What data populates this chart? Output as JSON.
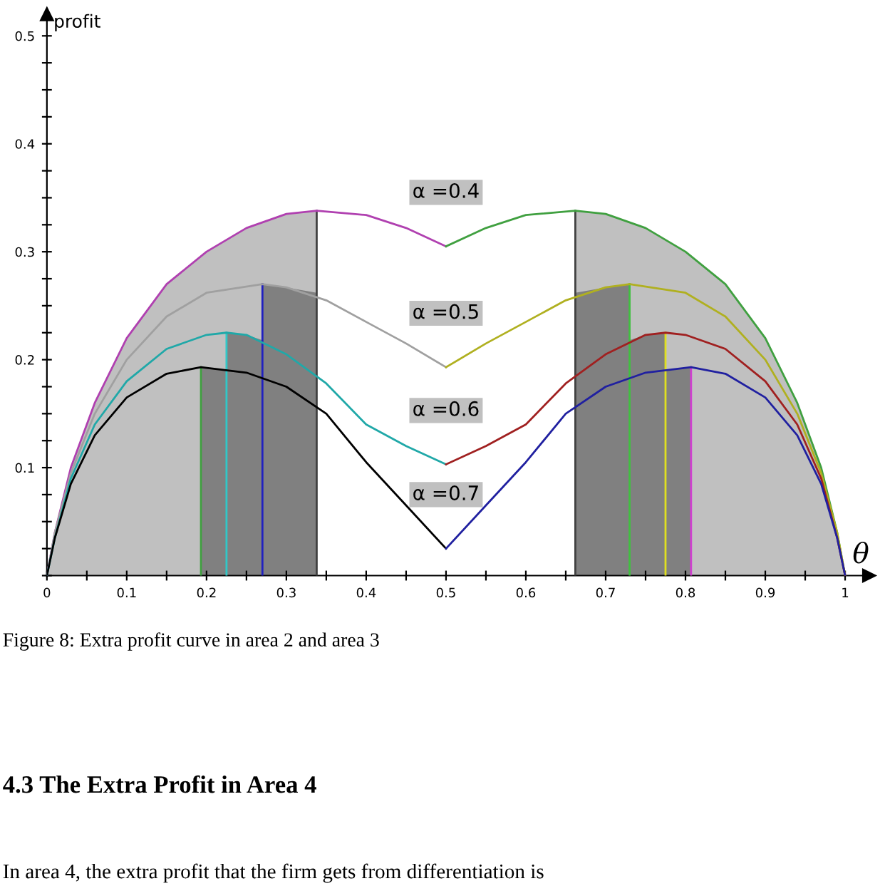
{
  "chart_data": {
    "type": "line",
    "xlabel": "θ",
    "ylabel": "profit",
    "xlim": [
      0,
      1.03
    ],
    "ylim": [
      0,
      0.52
    ],
    "xticks": [
      0,
      {
        "value": 0.05,
        "label": null
      },
      0.1,
      {
        "value": 0.15,
        "label": null
      },
      0.2,
      {
        "value": 0.25,
        "label": null
      },
      0.3,
      {
        "value": 0.35,
        "label": null
      },
      0.4,
      {
        "value": 0.45,
        "label": null
      },
      0.5,
      {
        "value": 0.55,
        "label": null
      },
      0.6,
      {
        "value": 0.65,
        "label": null
      },
      0.7,
      {
        "value": 0.75,
        "label": null
      },
      0.8,
      {
        "value": 0.85,
        "label": null
      },
      0.9,
      {
        "value": 0.95,
        "label": null
      },
      1
    ],
    "yticks": [
      {
        "value": 0,
        "label": null
      },
      {
        "value": 0.025,
        "label": null
      },
      {
        "value": 0.05,
        "label": null
      },
      {
        "value": 0.075,
        "label": null
      },
      0.1,
      {
        "value": 0.125,
        "label": null
      },
      {
        "value": 0.15,
        "label": null
      },
      {
        "value": 0.175,
        "label": null
      },
      0.2,
      {
        "value": 0.225,
        "label": null
      },
      {
        "value": 0.25,
        "label": null
      },
      {
        "value": 0.275,
        "label": null
      },
      0.3,
      {
        "value": 0.325,
        "label": null
      },
      {
        "value": 0.35,
        "label": null
      },
      {
        "value": 0.375,
        "label": null
      },
      0.4,
      {
        "value": 0.425,
        "label": null
      },
      {
        "value": 0.45,
        "label": null
      },
      {
        "value": 0.475,
        "label": null
      },
      0.5
    ],
    "grid": false,
    "legend": false,
    "series": [
      {
        "type": "area",
        "color": "#c0c0c0",
        "x": [
          0,
          0.01,
          0.03,
          0.06,
          0.1,
          0.15,
          0.2,
          0.25,
          0.3,
          0.338
        ],
        "values": [
          0,
          0.04,
          0.1,
          0.16,
          0.22,
          0.27,
          0.3,
          0.322,
          0.335,
          0.338
        ]
      },
      {
        "type": "area",
        "color": "#c0c0c0",
        "x": [
          0.662,
          0.7,
          0.75,
          0.8,
          0.85,
          0.9,
          0.94,
          0.97,
          0.99,
          1
        ],
        "values": [
          0.338,
          0.335,
          0.322,
          0.3,
          0.27,
          0.22,
          0.16,
          0.1,
          0.04,
          0
        ]
      },
      {
        "type": "area",
        "color": "#808080",
        "x": [
          0.193,
          0.225,
          0.225,
          0.25,
          0.27,
          0.27,
          0.3,
          0.338
        ],
        "values": [
          0.193,
          0.19,
          0.225,
          0.223,
          0.218,
          0.27,
          0.267,
          0.262
        ]
      },
      {
        "type": "area",
        "color": "#808080",
        "x": [
          0.662,
          0.7,
          0.73,
          0.73,
          0.75,
          0.775,
          0.775,
          0.807
        ],
        "values": [
          0.262,
          0.267,
          0.27,
          0.218,
          0.223,
          0.225,
          0.19,
          0.193
        ]
      },
      {
        "color": "#40a040",
        "x": [
          0.193,
          0.193
        ],
        "values": [
          0,
          0.193
        ]
      },
      {
        "color": "#30c8c8",
        "x": [
          0.225,
          0.225
        ],
        "values": [
          0,
          0.225
        ]
      },
      {
        "color": "#2020c0",
        "x": [
          0.27,
          0.27
        ],
        "values": [
          0,
          0.27
        ]
      },
      {
        "color": "#404040",
        "x": [
          0.338,
          0.338
        ],
        "values": [
          0,
          0.338
        ]
      },
      {
        "color": "#404040",
        "x": [
          0.662,
          0.662
        ],
        "values": [
          0,
          0.338
        ]
      },
      {
        "color": "#40c040",
        "x": [
          0.73,
          0.73
        ],
        "values": [
          0,
          0.27
        ]
      },
      {
        "color": "#e0e020",
        "x": [
          0.775,
          0.775
        ],
        "values": [
          0,
          0.225
        ]
      },
      {
        "color": "#d040d0",
        "x": [
          0.807,
          0.807
        ],
        "values": [
          0,
          0.193
        ]
      },
      {
        "name": "α =0.4",
        "color": "#b040b0",
        "x": [
          0,
          0.01,
          0.03,
          0.06,
          0.1,
          0.15,
          0.2,
          0.25,
          0.3,
          0.338,
          0.4,
          0.45,
          0.5
        ],
        "values": [
          0,
          0.04,
          0.1,
          0.16,
          0.22,
          0.27,
          0.3,
          0.322,
          0.335,
          0.338,
          0.334,
          0.322,
          0.305
        ]
      },
      {
        "color": "#40a040",
        "x": [
          0.5,
          0.55,
          0.6,
          0.662,
          0.7,
          0.75,
          0.8,
          0.85,
          0.9,
          0.94,
          0.97,
          0.99,
          1
        ],
        "values": [
          0.305,
          0.322,
          0.334,
          0.338,
          0.335,
          0.322,
          0.3,
          0.27,
          0.22,
          0.16,
          0.1,
          0.04,
          0
        ]
      },
      {
        "name": "α =0.5",
        "color": "#a0a0a0",
        "x": [
          0,
          0.01,
          0.03,
          0.06,
          0.1,
          0.15,
          0.2,
          0.27,
          0.3,
          0.35,
          0.4,
          0.45,
          0.5
        ],
        "values": [
          0,
          0.04,
          0.095,
          0.15,
          0.2,
          0.24,
          0.262,
          0.27,
          0.267,
          0.255,
          0.235,
          0.215,
          0.193
        ]
      },
      {
        "color": "#b0b020",
        "x": [
          0.5,
          0.55,
          0.6,
          0.65,
          0.7,
          0.73,
          0.8,
          0.85,
          0.9,
          0.94,
          0.97,
          0.99,
          1
        ],
        "values": [
          0.193,
          0.215,
          0.235,
          0.255,
          0.267,
          0.27,
          0.262,
          0.24,
          0.2,
          0.15,
          0.095,
          0.04,
          0
        ]
      },
      {
        "name": "α =0.6",
        "color": "#20a8a8",
        "x": [
          0,
          0.01,
          0.03,
          0.06,
          0.1,
          0.15,
          0.2,
          0.225,
          0.25,
          0.3,
          0.35,
          0.4,
          0.45,
          0.5
        ],
        "values": [
          0,
          0.035,
          0.09,
          0.14,
          0.18,
          0.21,
          0.223,
          0.225,
          0.223,
          0.205,
          0.178,
          0.14,
          0.12,
          0.103
        ]
      },
      {
        "color": "#a02020",
        "x": [
          0.5,
          0.55,
          0.6,
          0.65,
          0.7,
          0.75,
          0.775,
          0.8,
          0.85,
          0.9,
          0.94,
          0.97,
          0.99,
          1
        ],
        "values": [
          0.103,
          0.12,
          0.14,
          0.178,
          0.205,
          0.223,
          0.225,
          0.223,
          0.21,
          0.18,
          0.14,
          0.09,
          0.035,
          0
        ]
      },
      {
        "name": "α =0.7",
        "color": "#000000",
        "x": [
          0,
          0.01,
          0.03,
          0.06,
          0.1,
          0.15,
          0.193,
          0.25,
          0.3,
          0.35,
          0.4,
          0.45,
          0.5
        ],
        "values": [
          0,
          0.035,
          0.085,
          0.13,
          0.165,
          0.187,
          0.193,
          0.188,
          0.175,
          0.15,
          0.105,
          0.065,
          0.025
        ]
      },
      {
        "color": "#2020a0",
        "x": [
          0.5,
          0.55,
          0.6,
          0.65,
          0.7,
          0.75,
          0.807,
          0.85,
          0.9,
          0.94,
          0.97,
          0.99,
          1
        ],
        "values": [
          0.025,
          0.065,
          0.105,
          0.15,
          0.175,
          0.188,
          0.193,
          0.187,
          0.165,
          0.13,
          0.085,
          0.035,
          0
        ]
      }
    ],
    "annotations": [
      "Figure 8: Extra profit curve in area 2 and area 3",
      "4.3 The Extra Profit in Area 4",
      "In area 4, the extra profit that the firm gets from differentiation is"
    ]
  }
}
